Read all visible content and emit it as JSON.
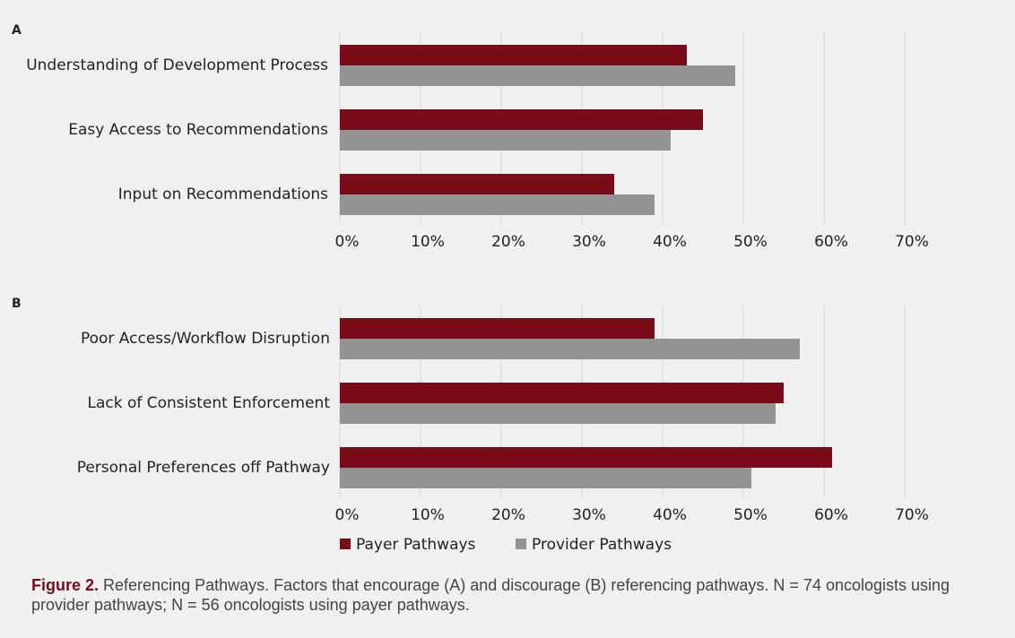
{
  "chart_data": [
    {
      "type": "barh",
      "panel": "A",
      "categories": [
        "Understanding of Development Process",
        "Easy Access to Recommendations",
        "Input on Recommendations"
      ],
      "series": [
        {
          "color": "#7a0c19",
          "values": [
            43,
            45,
            34
          ]
        },
        {
          "color": "#939393",
          "values": [
            49,
            41,
            39
          ]
        }
      ],
      "xlim": [
        0,
        70
      ],
      "xticks": [
        {
          "value": 0,
          "label": "0%"
        },
        {
          "value": 10,
          "label": "10%"
        },
        {
          "value": 20,
          "label": "20%"
        },
        {
          "value": 30,
          "label": "30%"
        },
        {
          "value": 40,
          "label": "40%"
        },
        {
          "value": 50,
          "label": "50%"
        },
        {
          "value": 60,
          "label": "60%"
        },
        {
          "value": 70,
          "label": "70%"
        }
      ],
      "grid": true
    },
    {
      "type": "barh",
      "panel": "B",
      "categories": [
        "Poor Access/Workflow Disruption",
        "Lack of Consistent Enforcement",
        "Personal Preferences off Pathway"
      ],
      "series": [
        {
          "name": "Payer Pathways",
          "color": "#7a0c19",
          "values": [
            39,
            55,
            61
          ]
        },
        {
          "name": "Provider Pathways",
          "color": "#939393",
          "values": [
            57,
            54,
            51
          ]
        }
      ],
      "xlim": [
        0,
        70
      ],
      "xticks": [
        {
          "value": 0,
          "label": "0%"
        },
        {
          "value": 10,
          "label": "10%"
        },
        {
          "value": 20,
          "label": "20%"
        },
        {
          "value": 30,
          "label": "30%"
        },
        {
          "value": 40,
          "label": "40%"
        },
        {
          "value": 50,
          "label": "50%"
        },
        {
          "value": 60,
          "label": "60%"
        },
        {
          "value": 70,
          "label": "70%"
        }
      ],
      "grid": true
    }
  ],
  "caption": {
    "label": "Figure 2.",
    "text": "Referencing Pathways. Factors that encourage (A) and discourage (B) referencing pathways. N = 74 oncologists using provider pathways; N = 56 oncologists using payer pathways."
  }
}
